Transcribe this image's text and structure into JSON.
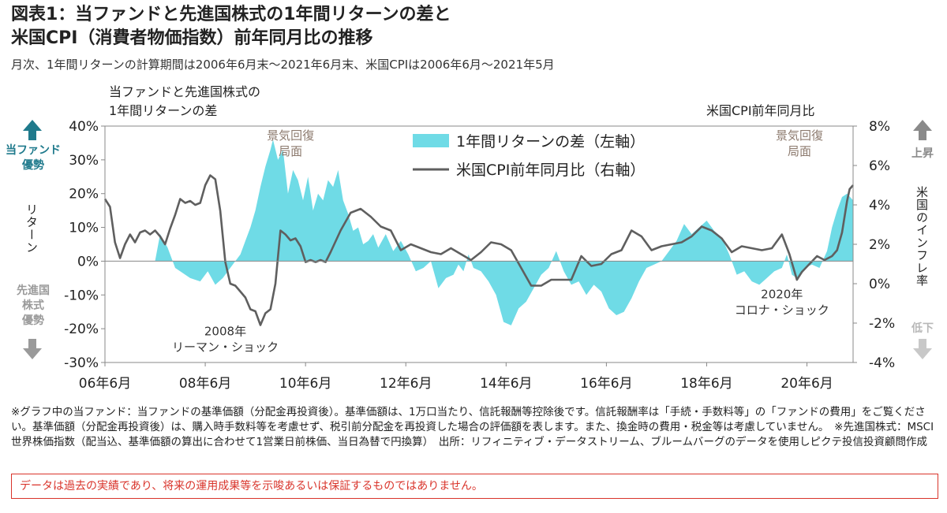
{
  "title_line1": "図表1：当ファンドと先進国株式の1年間リターンの差と",
  "title_line2": "米国CPI（消費者物価指数）前年同月比の推移",
  "subtitle": "月次、1年間リターンの計算期間は2006年6月末～2021年6月末、米国CPIは2006年6月～2021年5月",
  "left_axis_caption": [
    "当ファンドと先進国株式の",
    "1年間リターンの差"
  ],
  "right_axis_caption": "米国CPI前年同月比",
  "left_side_top": [
    "当ファンド",
    "優勢"
  ],
  "left_side_mid": "リターン",
  "left_side_bottom": [
    "先進国",
    "株式",
    "優勢"
  ],
  "right_side_top": "上昇",
  "right_side_mid": "米国のインフレ率",
  "right_side_bottom": "低下",
  "notes": "※グラフ中の当ファンド：当ファンドの基準価額（分配金再投資後）。基準価額は、1万口当たり、信託報酬等控除後です。信託報酬率は「手続・手数料等」の「ファンドの費用」をご覧ください。基準価額（分配金再投資後）は、購入時手数料等を考慮せず、税引前分配金を再投資した場合の評価額を表します。また、換金時の費用・税金等は考慮していません。　※先進国株式：MSCI世界株価指数（配当込、基準価額の算出に合わせて1営業日前株価、当日為替で円換算）　出所：リフィニティブ・データストリーム、ブルームバーグのデータを使用しピクテ投信投資顧問作成",
  "disclaimer": "データは過去の実績であり、将来の運用成果等を示唆あるいは保証するものではありません。",
  "colors": {
    "area": "#6fdbe6",
    "line": "#5f5f5f",
    "accent": "#1f7a8c",
    "disclaimer": "#d9342b"
  },
  "chart_data": {
    "type": "area+line",
    "x_tick_labels": [
      "06年6月",
      "08年6月",
      "10年6月",
      "12年6月",
      "14年6月",
      "16年6月",
      "18年6月",
      "20年6月"
    ],
    "x_tick_years": [
      2006.5,
      2008.5,
      2010.5,
      2012.5,
      2014.5,
      2016.5,
      2018.5,
      2020.5
    ],
    "xlim": [
      2006.5,
      2021.42
    ],
    "y_left": {
      "ticks": [
        "40%",
        "30%",
        "20%",
        "10%",
        "0%",
        "-10%",
        "-20%",
        "-30%"
      ],
      "ylim": [
        -30,
        40
      ]
    },
    "y_right": {
      "ticks": [
        "8%",
        "6%",
        "4%",
        "2%",
        "0%",
        "-2%",
        "-4%"
      ],
      "ylim": [
        -4,
        8
      ]
    },
    "legend": [
      "1年間リターンの差（左軸）",
      "米国CPI前年同月比（右軸）"
    ],
    "annotations": [
      {
        "lines": [
          "景気回復",
          "局面"
        ],
        "x": 2010.2,
        "y": 36,
        "axis": "left",
        "color": "#8c7a6e"
      },
      {
        "lines": [
          "景気回復",
          "局面"
        ],
        "x": 2020.35,
        "y": 36,
        "axis": "left",
        "color": "#8c7a6e"
      },
      {
        "lines": [
          "2008年",
          "リーマン・ショック"
        ],
        "x": 2008.9,
        "y": -22,
        "axis": "left",
        "color": "#333"
      },
      {
        "lines": [
          "2020年",
          "コロナ・ショック"
        ],
        "x": 2020.0,
        "y": -11,
        "axis": "left",
        "color": "#333"
      }
    ],
    "series": [
      {
        "name": "1年間リターンの差（左軸）",
        "style": "area",
        "axis": "left",
        "x": [
          2007.5,
          2007.6,
          2007.75,
          2007.9,
          2008.0,
          2008.2,
          2008.4,
          2008.55,
          2008.7,
          2008.85,
          2009.0,
          2009.1,
          2009.2,
          2009.3,
          2009.4,
          2009.5,
          2009.6,
          2009.7,
          2009.8,
          2009.85,
          2009.95,
          2010.05,
          2010.15,
          2010.25,
          2010.35,
          2010.45,
          2010.55,
          2010.65,
          2010.75,
          2010.85,
          2010.95,
          2011.05,
          2011.15,
          2011.25,
          2011.35,
          2011.45,
          2011.55,
          2011.65,
          2011.75,
          2011.85,
          2011.95,
          2012.1,
          2012.25,
          2012.4,
          2012.55,
          2012.7,
          2012.85,
          2013.0,
          2013.15,
          2013.3,
          2013.45,
          2013.55,
          2013.65,
          2013.75,
          2013.85,
          2014.0,
          2014.15,
          2014.3,
          2014.45,
          2014.6,
          2014.75,
          2014.9,
          2015.05,
          2015.2,
          2015.35,
          2015.5,
          2015.65,
          2015.8,
          2015.95,
          2016.1,
          2016.25,
          2016.4,
          2016.55,
          2016.7,
          2016.85,
          2017.0,
          2017.15,
          2017.3,
          2017.45,
          2017.6,
          2017.75,
          2017.9,
          2018.05,
          2018.2,
          2018.35,
          2018.5,
          2018.65,
          2018.8,
          2018.95,
          2019.1,
          2019.25,
          2019.4,
          2019.55,
          2019.7,
          2019.85,
          2020.0,
          2020.1,
          2020.2,
          2020.3,
          2020.45,
          2020.6,
          2020.75,
          2020.9,
          2021.0,
          2021.1,
          2021.2,
          2021.3,
          2021.42
        ],
        "y": [
          0,
          8,
          4,
          -2,
          -3,
          -5,
          -6,
          -3,
          -7,
          -5,
          -2,
          0,
          2,
          6,
          10,
          15,
          22,
          28,
          33,
          36,
          30,
          33,
          20,
          27,
          24,
          18,
          25,
          15,
          20,
          18,
          24,
          22,
          27,
          18,
          14,
          9,
          10,
          5,
          6,
          8,
          4,
          8,
          3,
          6,
          2,
          -3,
          -2,
          0,
          -8,
          -5,
          -4,
          -1,
          -3,
          2,
          -2,
          -3,
          -6,
          -10,
          -18,
          -19,
          -14,
          -12,
          -8,
          -4,
          -2,
          3,
          -3,
          -7,
          -6,
          -10,
          -7,
          -9,
          -14,
          -16,
          -15,
          -11,
          -6,
          -2,
          -1,
          0,
          3,
          6,
          11,
          8,
          10,
          12,
          9,
          7,
          2,
          -4,
          -3,
          -6,
          -7,
          -5,
          -3,
          -2,
          2,
          -4,
          -5,
          -2,
          -1,
          -2,
          3,
          10,
          15,
          19,
          20,
          18
        ]
      },
      {
        "name": "米国CPI前年同月比（右軸）",
        "style": "line",
        "axis": "right",
        "x": [
          2006.5,
          2006.6,
          2006.7,
          2006.8,
          2006.9,
          2007.0,
          2007.1,
          2007.2,
          2007.3,
          2007.4,
          2007.5,
          2007.6,
          2007.7,
          2007.8,
          2007.9,
          2008.0,
          2008.1,
          2008.2,
          2008.3,
          2008.4,
          2008.5,
          2008.6,
          2008.7,
          2008.8,
          2008.9,
          2009.0,
          2009.1,
          2009.2,
          2009.3,
          2009.4,
          2009.5,
          2009.6,
          2009.7,
          2009.8,
          2009.9,
          2010.0,
          2010.1,
          2010.2,
          2010.3,
          2010.4,
          2010.5,
          2010.6,
          2010.7,
          2010.8,
          2010.9,
          2011.0,
          2011.2,
          2011.4,
          2011.6,
          2011.8,
          2012.0,
          2012.2,
          2012.4,
          2012.6,
          2012.8,
          2013.0,
          2013.2,
          2013.4,
          2013.6,
          2013.8,
          2014.0,
          2014.2,
          2014.4,
          2014.6,
          2014.8,
          2015.0,
          2015.2,
          2015.4,
          2015.6,
          2015.8,
          2016.0,
          2016.2,
          2016.4,
          2016.6,
          2016.8,
          2017.0,
          2017.2,
          2017.4,
          2017.6,
          2017.8,
          2018.0,
          2018.2,
          2018.4,
          2018.6,
          2018.8,
          2019.0,
          2019.2,
          2019.4,
          2019.6,
          2019.8,
          2020.0,
          2020.15,
          2020.3,
          2020.4,
          2020.55,
          2020.7,
          2020.85,
          2021.0,
          2021.1,
          2021.2,
          2021.3,
          2021.35,
          2021.42
        ],
        "y": [
          4.3,
          3.9,
          2.1,
          1.3,
          2.0,
          2.5,
          2.1,
          2.6,
          2.7,
          2.5,
          2.7,
          2.4,
          2.0,
          2.8,
          3.5,
          4.3,
          4.1,
          4.2,
          4.0,
          4.1,
          5.0,
          5.5,
          5.3,
          3.7,
          1.1,
          0.0,
          -0.1,
          -0.4,
          -0.7,
          -1.3,
          -1.4,
          -2.1,
          -1.5,
          -1.3,
          0.0,
          2.7,
          2.5,
          2.2,
          2.3,
          1.9,
          1.1,
          1.2,
          1.1,
          1.2,
          1.1,
          1.6,
          2.7,
          3.6,
          3.8,
          3.4,
          2.9,
          2.7,
          1.7,
          2.0,
          1.8,
          1.6,
          1.5,
          1.8,
          1.5,
          1.2,
          1.6,
          2.1,
          2.0,
          1.7,
          0.8,
          -0.1,
          -0.1,
          0.2,
          0.2,
          0.2,
          1.4,
          0.9,
          1.0,
          1.5,
          1.7,
          2.7,
          2.4,
          1.7,
          1.9,
          2.0,
          2.1,
          2.4,
          2.9,
          2.7,
          2.3,
          1.6,
          1.9,
          1.8,
          1.7,
          1.8,
          2.5,
          1.5,
          0.2,
          0.6,
          1.0,
          1.4,
          1.2,
          1.4,
          1.7,
          2.6,
          4.2,
          4.8,
          5.0
        ]
      }
    ]
  }
}
